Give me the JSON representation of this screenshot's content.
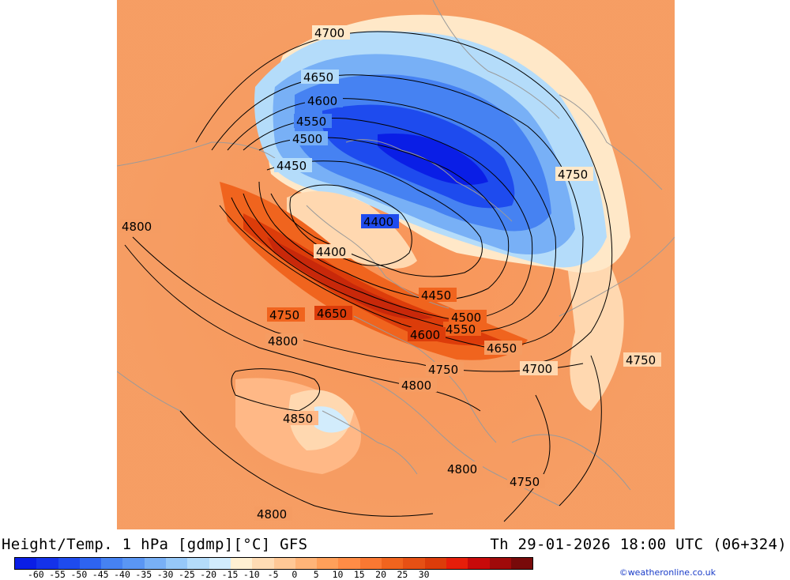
{
  "header": {
    "left_title": "Height/Temp. 1 hPa [gdmp][°C] GFS",
    "right_title": "Th 29-01-2026 18:00 UTC (06+324)"
  },
  "colorbar": {
    "colors": [
      "#0a1ee6",
      "#1432ea",
      "#1e4bee",
      "#2e64f0",
      "#4682f2",
      "#5a96f4",
      "#78b0f6",
      "#96c8f8",
      "#b4dcfa",
      "#d2ecfc",
      "#fff0d2",
      "#ffdcb4",
      "#ffc896",
      "#ffb478",
      "#ffa05a",
      "#ff8c46",
      "#fa7832",
      "#f0641e",
      "#e65014",
      "#dc3c0a",
      "#e61e0a",
      "#c80a0a",
      "#a00a0a",
      "#780a0a"
    ],
    "tick_labels": [
      "-60",
      "-55",
      "-50",
      "-45",
      "-40",
      "-35",
      "-30",
      "-25",
      "-20",
      "-15",
      "-10",
      "-5",
      "0",
      "5",
      "10",
      "15",
      "20",
      "25",
      "30"
    ]
  },
  "credit": "©weatheronline.co.uk",
  "map": {
    "contour_labels": [
      "4700",
      "4650",
      "4600",
      "4550",
      "4500",
      "4450",
      "4400",
      "4400",
      "4750",
      "4800",
      "4450",
      "4500",
      "4550",
      "4600",
      "4650",
      "4700",
      "4750",
      "4650",
      "4800",
      "4750",
      "4800",
      "4850",
      "4750",
      "4800",
      "4750",
      "4800"
    ]
  }
}
